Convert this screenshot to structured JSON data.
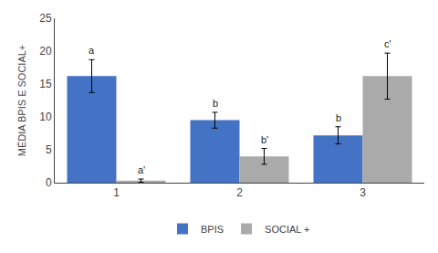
{
  "chart_data": {
    "type": "bar",
    "categories": [
      "1",
      "2",
      "3"
    ],
    "series": [
      {
        "name": "BPIS",
        "color": "#4472C4",
        "values": [
          16.2,
          9.5,
          7.2
        ],
        "errors": [
          2.5,
          1.2,
          1.3
        ],
        "annotations": [
          "a",
          "b",
          "b"
        ]
      },
      {
        "name": "SOCIAL +",
        "color": "#AAAAAA",
        "values": [
          0.3,
          4.0,
          16.2
        ],
        "errors": [
          0.25,
          1.2,
          3.5
        ],
        "annotations": [
          "a'",
          "b'",
          "c'"
        ]
      }
    ],
    "ylabel": "MÉDIA BPIS E SOCIAL+",
    "ylim": [
      0,
      25
    ],
    "yticks": [
      0,
      5,
      10,
      15,
      20,
      25
    ],
    "grid": false,
    "legend": "bottom"
  }
}
